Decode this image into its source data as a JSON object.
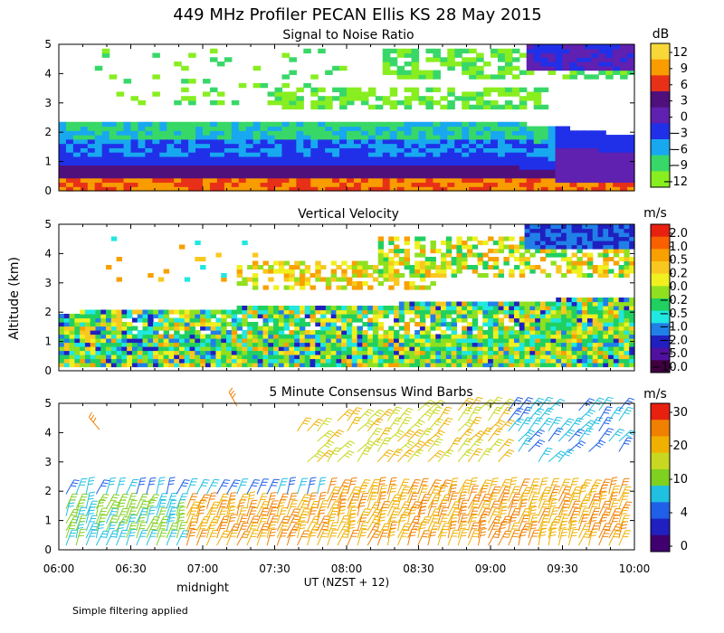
{
  "title": "449 MHz Profiler PECAN Ellis KS 28 May 2015",
  "y_axis_label": "Altitude (km)",
  "x_axis_label": "UT  (NZST + 12)",
  "midnight_label": "midnight",
  "footnote": "Simple filtering applied",
  "chart_data": [
    {
      "type": "heatmap",
      "title": "Signal to Noise Ratio",
      "units": "dB",
      "x_ticks": [
        "06:00",
        "06:30",
        "07:00",
        "07:30",
        "08:00",
        "08:30",
        "09:00",
        "09:30",
        "10:00"
      ],
      "xlim": [
        "06:00",
        "10:00"
      ],
      "y_ticks": [
        "0",
        "1",
        "2",
        "3",
        "4",
        "5"
      ],
      "ylim": [
        0,
        5
      ],
      "colorbar": {
        "labels": [
          "12",
          "9",
          "6",
          "3",
          "0",
          "−3",
          "−6",
          "−9",
          "−12"
        ],
        "colors": [
          "#f8d838",
          "#f89c00",
          "#e83018",
          "#50107c",
          "#6020b0",
          "#2030e8",
          "#18a8f0",
          "#38d868",
          "#88ee20"
        ]
      }
    },
    {
      "type": "heatmap",
      "title": "Vertical Velocity",
      "units": "m/s",
      "x_ticks": [
        "06:00",
        "06:30",
        "07:00",
        "07:30",
        "08:00",
        "08:30",
        "09:00",
        "09:30",
        "10:00"
      ],
      "xlim": [
        "06:00",
        "10:00"
      ],
      "y_ticks": [
        "0",
        "1",
        "2",
        "3",
        "4",
        "5"
      ],
      "ylim": [
        0,
        5
      ],
      "colorbar": {
        "labels": [
          "2.0",
          "1.0",
          "0.5",
          "0.2",
          "0.0",
          "−0.2",
          "−0.5",
          "−1.0",
          "−2.0",
          "−5.0",
          "−10.0"
        ],
        "colors": [
          "#e82010",
          "#f86000",
          "#f8a000",
          "#f8c820",
          "#f0f020",
          "#90e020",
          "#20d060",
          "#20e8e0",
          "#2080e8",
          "#2020c0",
          "#5010a0",
          "#400040"
        ]
      }
    },
    {
      "type": "scatter",
      "title": "5 Minute Consensus Wind Barbs",
      "units": "m/s",
      "x_ticks": [
        "06:00",
        "06:30",
        "07:00",
        "07:30",
        "08:00",
        "08:30",
        "09:00",
        "09:30",
        "10:00"
      ],
      "xlim": [
        "06:00",
        "10:00"
      ],
      "y_ticks": [
        "0",
        "1",
        "2",
        "3",
        "4",
        "5"
      ],
      "ylim": [
        0,
        5
      ],
      "colorbar": {
        "labels": [
          "30",
          "20",
          "10",
          "4",
          "0"
        ],
        "colors": [
          "#e82010",
          "#f08000",
          "#f0b000",
          "#c8d820",
          "#80d020",
          "#20c0e0",
          "#2060e8",
          "#2020c0",
          "#400070"
        ]
      }
    }
  ]
}
